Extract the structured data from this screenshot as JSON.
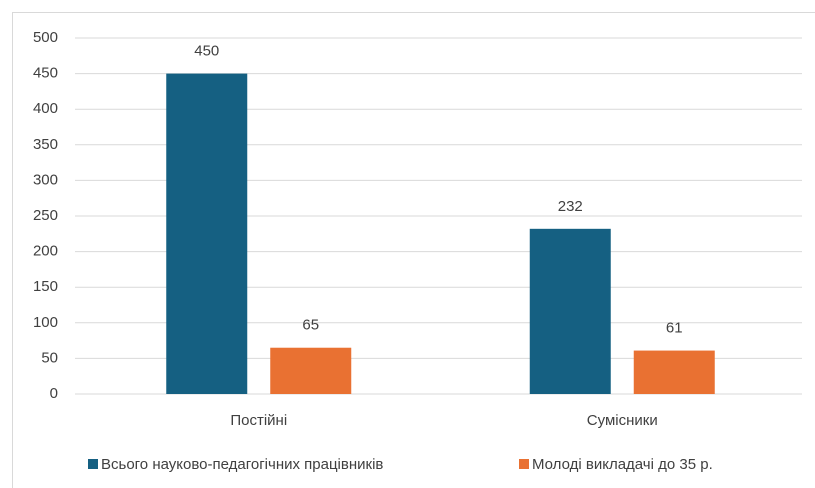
{
  "chart_data": {
    "type": "bar",
    "categories": [
      "Постійні",
      "Сумісники"
    ],
    "series": [
      {
        "name": "Всього науково-педагогічних працівників",
        "color": "#156082",
        "values": [
          450,
          232
        ]
      },
      {
        "name": "Молоді викладачі до 35 р.",
        "color": "#e97132",
        "values": [
          65,
          61
        ]
      }
    ],
    "ylim": [
      0,
      500
    ],
    "yticks": [
      0,
      50,
      100,
      150,
      200,
      250,
      300,
      350,
      400,
      450,
      500
    ],
    "grid": true,
    "legend": "bottom"
  }
}
